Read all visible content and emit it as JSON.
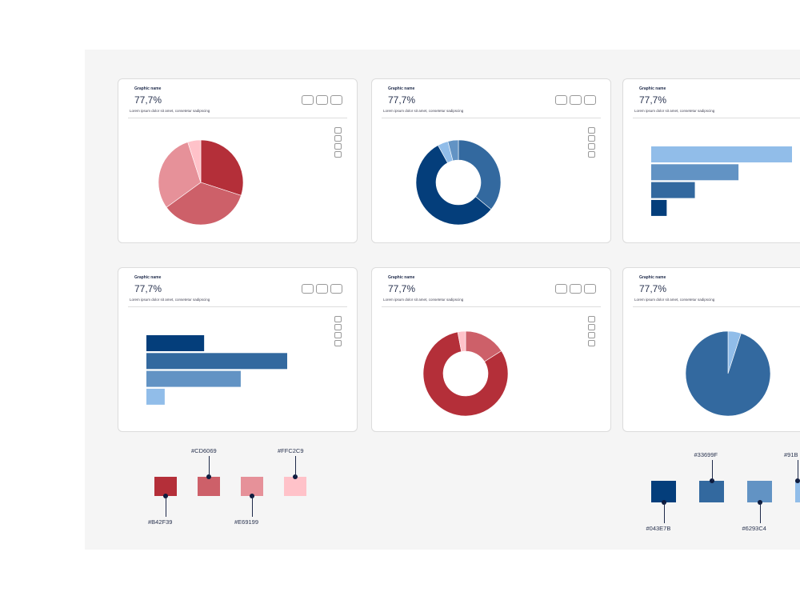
{
  "card_common": {
    "title": "Graphic name",
    "value": "77,7%",
    "description": "Lorem ipsum dolor sit amet, consetetur sadipscing"
  },
  "cards": [
    {
      "type": "pie",
      "colors": [
        "#B42F39",
        "#CD6069",
        "#E69199",
        "#FFC2C9"
      ],
      "values": [
        30,
        35,
        30,
        5
      ]
    },
    {
      "type": "donut",
      "colors": [
        "#33699F",
        "#043E7B",
        "#91BDE9",
        "#6293C4"
      ],
      "values": [
        36,
        56,
        4,
        4
      ]
    },
    {
      "type": "bars",
      "colors": [
        "#91BDE9",
        "#6293C4",
        "#33699F",
        "#043E7B"
      ],
      "values": [
        100,
        62,
        31,
        11
      ]
    },
    {
      "type": "bars",
      "colors": [
        "#043E7B",
        "#33699F",
        "#6293C4",
        "#91BDE9"
      ],
      "values": [
        41,
        100,
        67,
        13
      ]
    },
    {
      "type": "donut",
      "colors": [
        "#CD6069",
        "#B42F39",
        "#FFC2C9"
      ],
      "values": [
        16,
        81,
        3
      ]
    },
    {
      "type": "pie",
      "colors": [
        "#91BDE9",
        "#33699F"
      ],
      "values": [
        5,
        95
      ]
    }
  ],
  "red_palette": [
    "#B42F39",
    "#CD6069",
    "#E69199",
    "#FFC2C9"
  ],
  "red_labels": [
    "#B42F39",
    "#CD6069",
    "#E69199",
    "#FFC2C9"
  ],
  "blue_palette": [
    "#043E7B",
    "#33699F",
    "#6293C4",
    "#91BDE9"
  ],
  "blue_labels": [
    "#043E7B",
    "#33699F",
    "#6293C4",
    "#91B"
  ]
}
